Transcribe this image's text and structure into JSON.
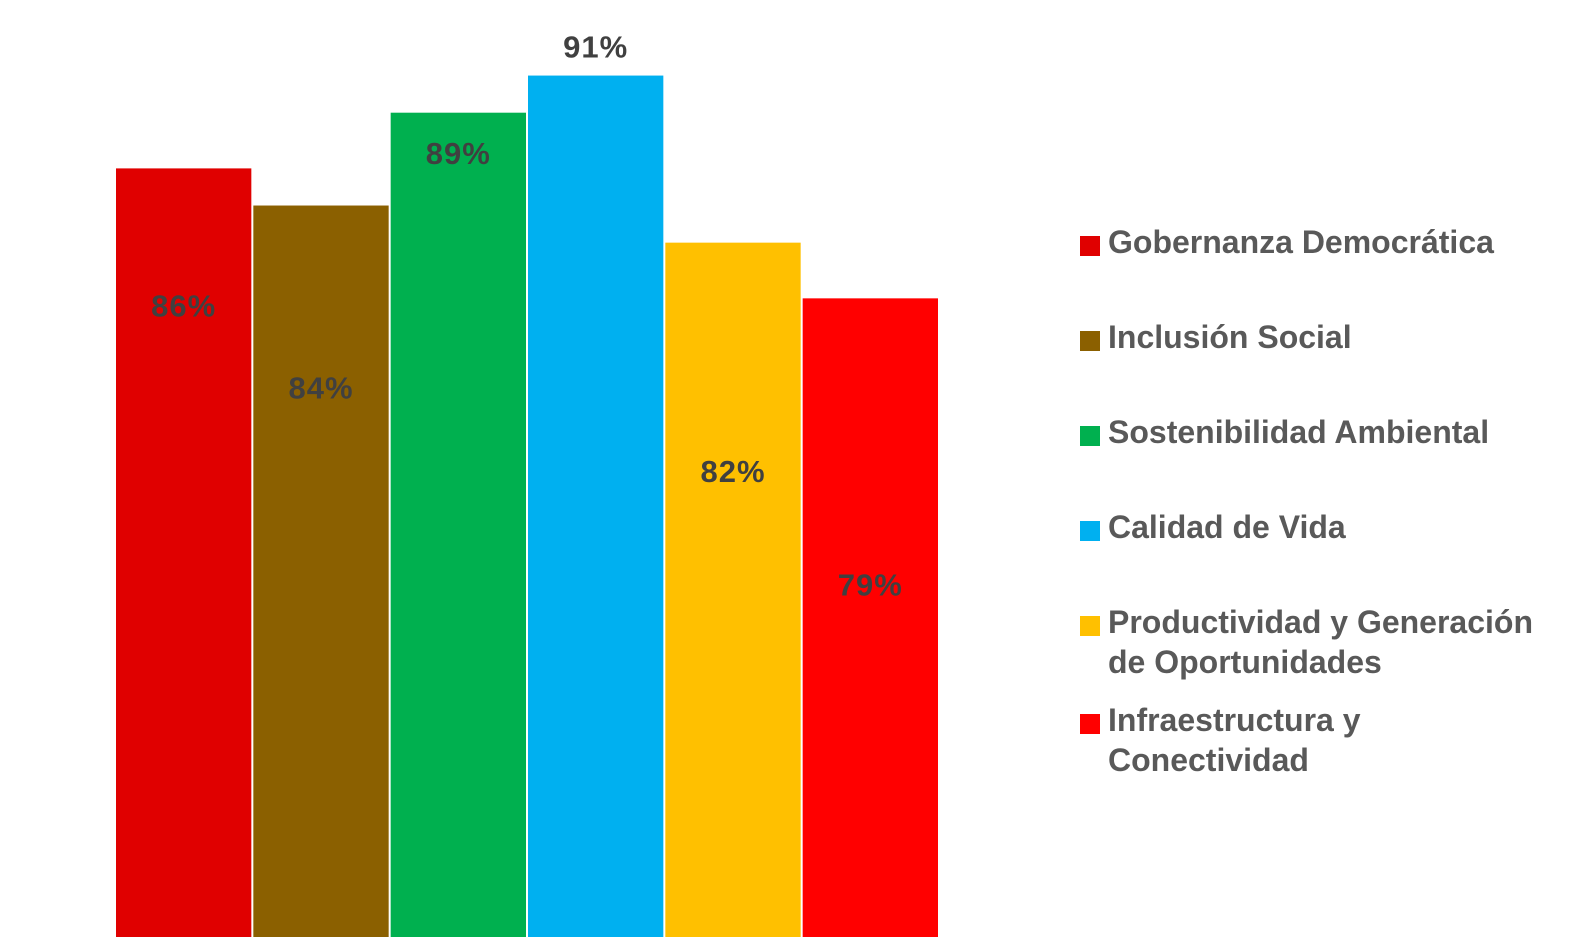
{
  "chart_data": {
    "type": "bar",
    "categories": [
      "Gobernanza Democrática",
      "Inclusión Social",
      "Sostenibilidad Ambiental",
      "Calidad de Vida",
      "Productividad y Generación de Oportunidades",
      "Infraestructura y Conectividad"
    ],
    "values": [
      86,
      84,
      89,
      91,
      82,
      79
    ],
    "data_labels": [
      "86%",
      "84%",
      "89%",
      "91%",
      "82%",
      "79%"
    ],
    "colors": [
      "#e00000",
      "#8b6000",
      "#00b04f",
      "#00b0f0",
      "#ffc000",
      "#ff0000"
    ],
    "title": "",
    "xlabel": "",
    "ylabel": "",
    "ylim": [
      44.6,
      92
    ],
    "grid": false,
    "legend_position": "right",
    "legend": [
      {
        "label": "Gobernanza Democrática",
        "color": "#e00000"
      },
      {
        "label": "Inclusión Social",
        "color": "#8b6000"
      },
      {
        "label": "Sostenibilidad Ambiental",
        "color": "#00b04f"
      },
      {
        "label": "Calidad de Vida",
        "color": "#00b0f0"
      },
      {
        "label": "Productividad y Generación de Oportunidades",
        "color": "#ffc000"
      },
      {
        "label": "Infraestructura y Conectividad",
        "color": "#ff0000"
      }
    ]
  }
}
